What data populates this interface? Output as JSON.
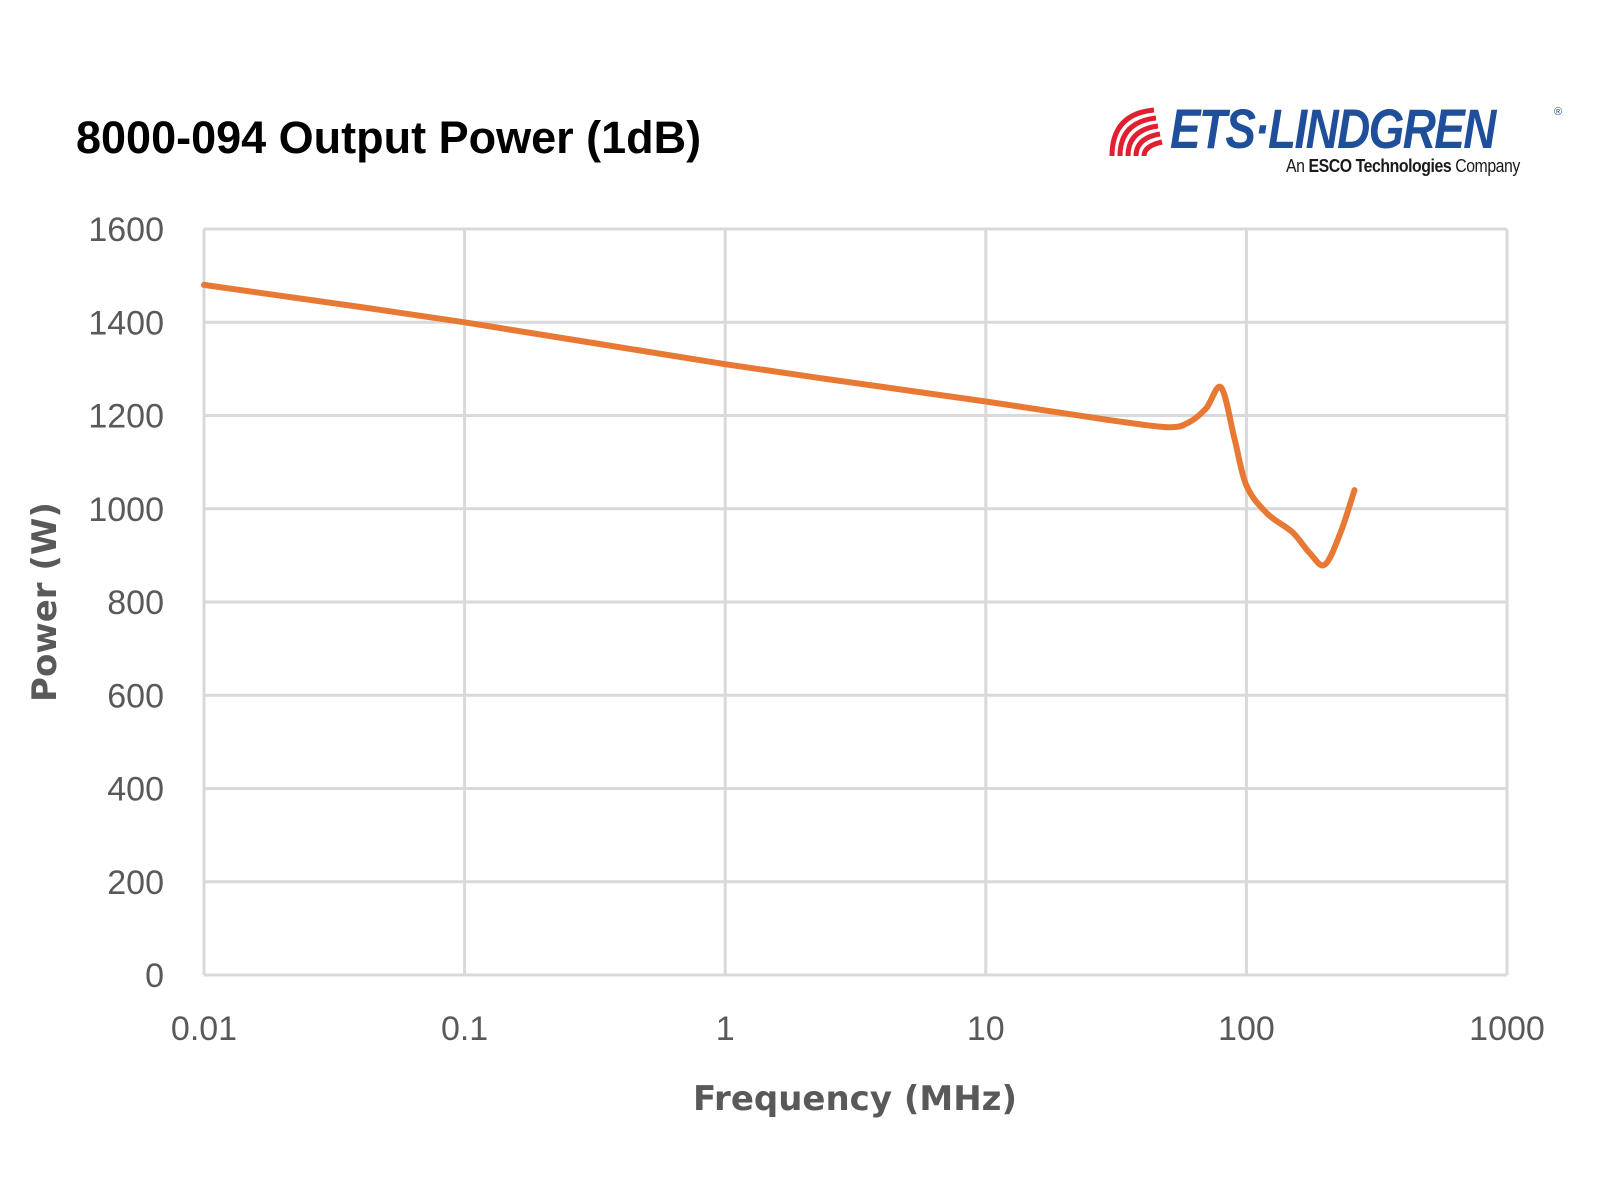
{
  "logo": {
    "name": "ETS·LINDGREN",
    "tagline_prefix": "An",
    "tagline_bold": "ESCO Technologies",
    "tagline_suffix": "Company",
    "reg_mark": "®"
  },
  "colors": {
    "series": "#e87935",
    "grid": "#d9d9d9",
    "text": "#595959",
    "brand_blue": "#1f4e9a",
    "brand_red": "#e02030"
  },
  "chart_data": {
    "type": "line",
    "title": "8000-094 Output Power (1dB)",
    "xlabel": "Frequency (MHz)",
    "ylabel": "Power (W)",
    "xscale": "log",
    "xlim": [
      0.01,
      1000
    ],
    "ylim": [
      0,
      1600
    ],
    "x_ticks": [
      "0.01",
      "0.1",
      "1",
      "10",
      "100",
      "1000"
    ],
    "y_ticks": [
      "0",
      "200",
      "400",
      "600",
      "800",
      "1000",
      "1200",
      "1400",
      "1600"
    ],
    "grid": true,
    "legend": "none",
    "series": [
      {
        "x": [
          0.01,
          0.1,
          1,
          10,
          30,
          50,
          60,
          70,
          80,
          90,
          100,
          120,
          150,
          175,
          200,
          230,
          260
        ],
        "values": [
          1480,
          1400,
          1310,
          1230,
          1190,
          1175,
          1185,
          1215,
          1260,
          1150,
          1050,
          990,
          950,
          905,
          880,
          950,
          1040
        ]
      }
    ]
  }
}
